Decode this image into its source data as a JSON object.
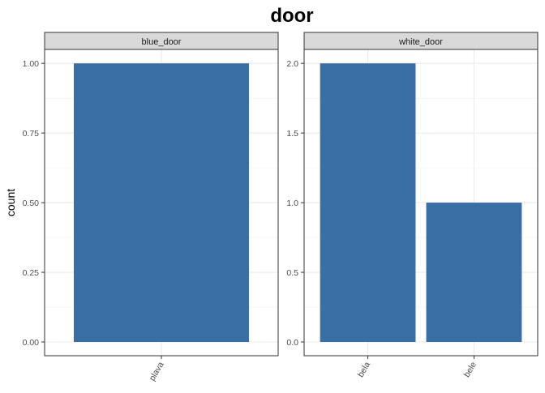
{
  "chart_data": {
    "type": "bar",
    "title": "door",
    "ylabel": "count",
    "xlabel": "",
    "bar_color": "#3A6FA6",
    "strip_color": "#D9D9D9",
    "facets": [
      {
        "name": "blue_door",
        "categories": [
          "plava"
        ],
        "values": [
          1
        ],
        "ylim": [
          0,
          1.05
        ],
        "yticks": [
          "0.00",
          "0.25",
          "0.50",
          "0.75",
          "1.00"
        ],
        "ytick_values": [
          0,
          0.25,
          0.5,
          0.75,
          1.0
        ]
      },
      {
        "name": "white_door",
        "categories": [
          "bela",
          "bele"
        ],
        "values": [
          2,
          1
        ],
        "ylim": [
          0,
          2.1
        ],
        "yticks": [
          "0.0",
          "0.5",
          "1.0",
          "1.5",
          "2.0"
        ],
        "ytick_values": [
          0,
          0.5,
          1.0,
          1.5,
          2.0
        ]
      }
    ]
  }
}
